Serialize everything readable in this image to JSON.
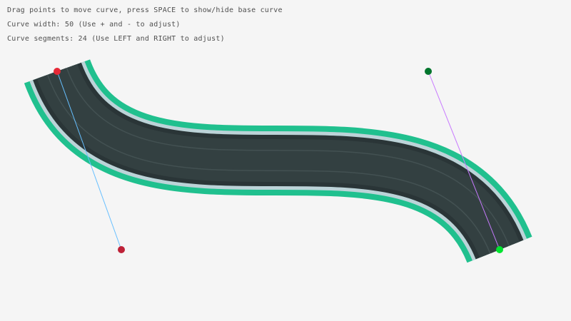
{
  "info": {
    "line1": "Drag points to move curve, press SPACE to show/hide base curve",
    "line2": "Curve width: 50 (Use + and - to adjust)",
    "line3": "Curve segments: 24 (Use LEFT and RIGHT to adjust)"
  },
  "colors": {
    "background": "#f5f5f5",
    "road_edge": "#20c08e",
    "road_stripe": "#bcd3d8",
    "road_shoulder": "#2a3537",
    "asphalt": "#334041",
    "start_point": "#e62937",
    "start_tangent": "#66bfff",
    "end_point": "#00e430",
    "end_tangent": "#c87aff",
    "control_end": "#00752c",
    "control_start": "#be2137"
  },
  "curve": {
    "width": 50,
    "segments": 24
  }
}
